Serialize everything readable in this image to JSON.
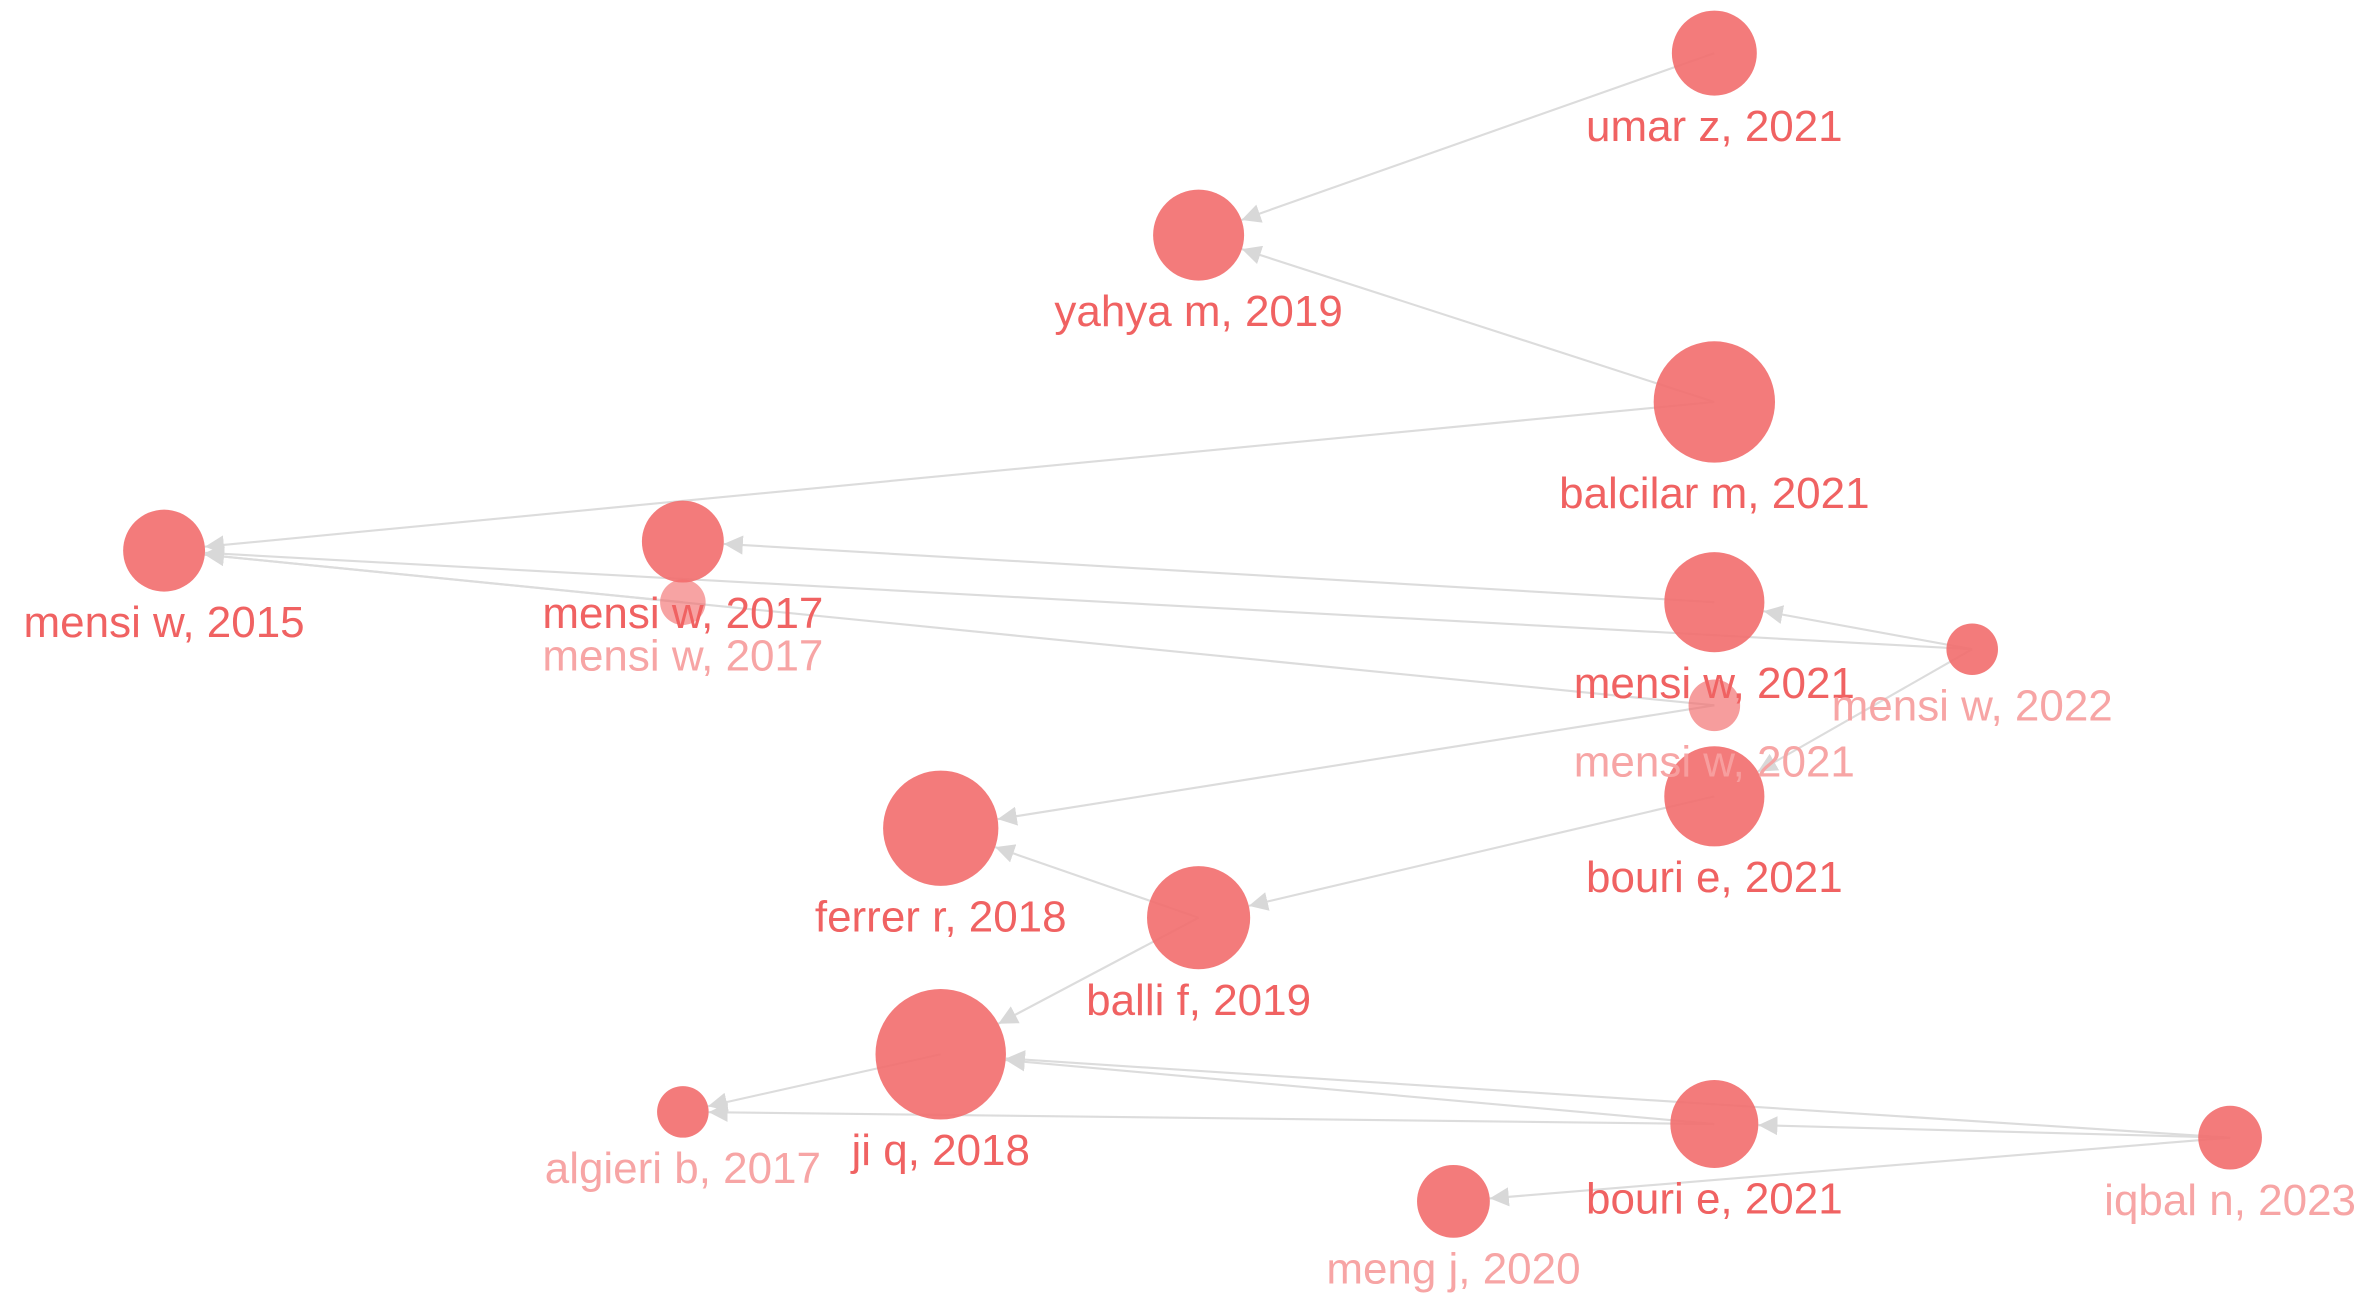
{
  "nodes": [
    {
      "label": "umar z, 2021"
    },
    {
      "label": "yahya m, 2019"
    },
    {
      "label": "balcilar m, 2021"
    },
    {
      "label": "mensi w, 2015"
    },
    {
      "label": "mensi w, 2017"
    },
    {
      "label": "mensi w, 2017"
    },
    {
      "label": "mensi w, 2021"
    },
    {
      "label": "mensi w, 2022"
    },
    {
      "label": "mensi w, 2021"
    },
    {
      "label": "bouri e, 2021"
    },
    {
      "label": "ferrer r, 2018"
    },
    {
      "label": "balli f, 2019"
    },
    {
      "label": "ji q, 2018"
    },
    {
      "label": "algieri b, 2017"
    },
    {
      "label": "bouri e, 2021"
    },
    {
      "label": "iqbal n, 2023"
    },
    {
      "label": "meng j, 2020"
    }
  ]
}
